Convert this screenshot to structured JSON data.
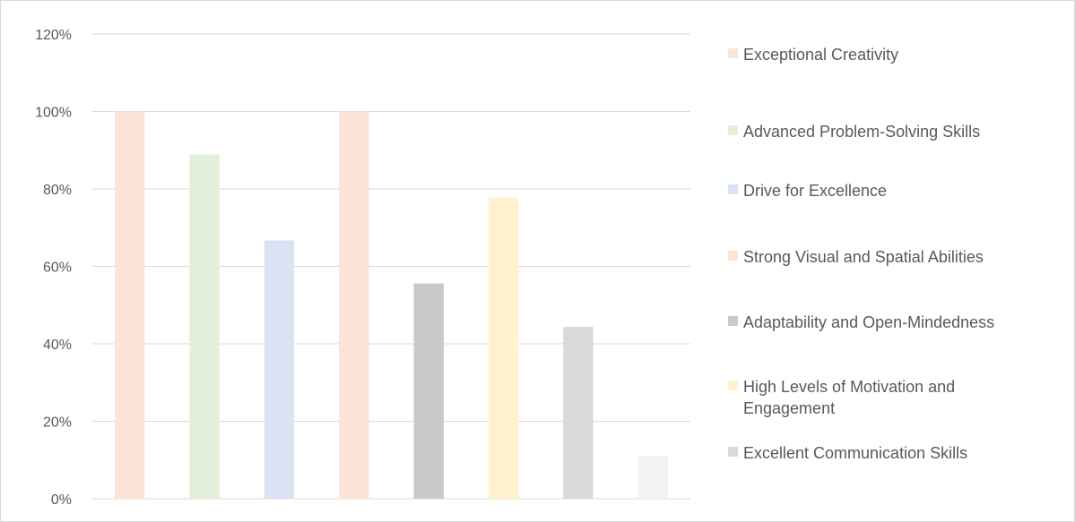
{
  "chart_data": {
    "type": "bar",
    "title": "",
    "xlabel": "",
    "ylabel": "",
    "ylim": [
      0,
      1.2
    ],
    "ytick_values": [
      0,
      0.2,
      0.4,
      0.6,
      0.8,
      1.0,
      1.2
    ],
    "ytick_labels": [
      "0%",
      "20%",
      "40%",
      "60%",
      "80%",
      "100%",
      "120%"
    ],
    "grid": true,
    "legend_position": "right",
    "categories": [
      "Exceptional Creativity",
      "Advanced Problem-Solving Skills",
      "Drive for Excellence",
      "Strong Visual and Spatial Abilities",
      "Adaptability and Open-Mindedness",
      "High Levels of Motivation and Engagement",
      "Excellent Communication Skills",
      ""
    ],
    "values": [
      1.0,
      0.889,
      0.667,
      1.0,
      0.556,
      0.778,
      0.444,
      0.111
    ],
    "colors": [
      "#fbe5d6",
      "#e2f0d9",
      "#dae3f3",
      "#fbe5d6",
      "#c9c9c9",
      "#fff2cc",
      "#d9d9d9",
      "#f2f2f2"
    ],
    "legend": [
      {
        "label": "Exceptional Creativity",
        "color": "#fbe5d6"
      },
      {
        "label": "Advanced Problem-Solving Skills",
        "color": "#e2f0d9"
      },
      {
        "label": "Drive for Excellence",
        "color": "#dae3f3"
      },
      {
        "label": "Strong Visual and Spatial Abilities",
        "color": "#fbe5d6"
      },
      {
        "label": "Adaptability and Open-Mindedness",
        "color": "#c9c9c9"
      },
      {
        "label": "High Levels of Motivation and Engagement",
        "color": "#fff2cc"
      },
      {
        "label": "Excellent Communication Skills",
        "color": "#d9d9d9"
      }
    ]
  }
}
